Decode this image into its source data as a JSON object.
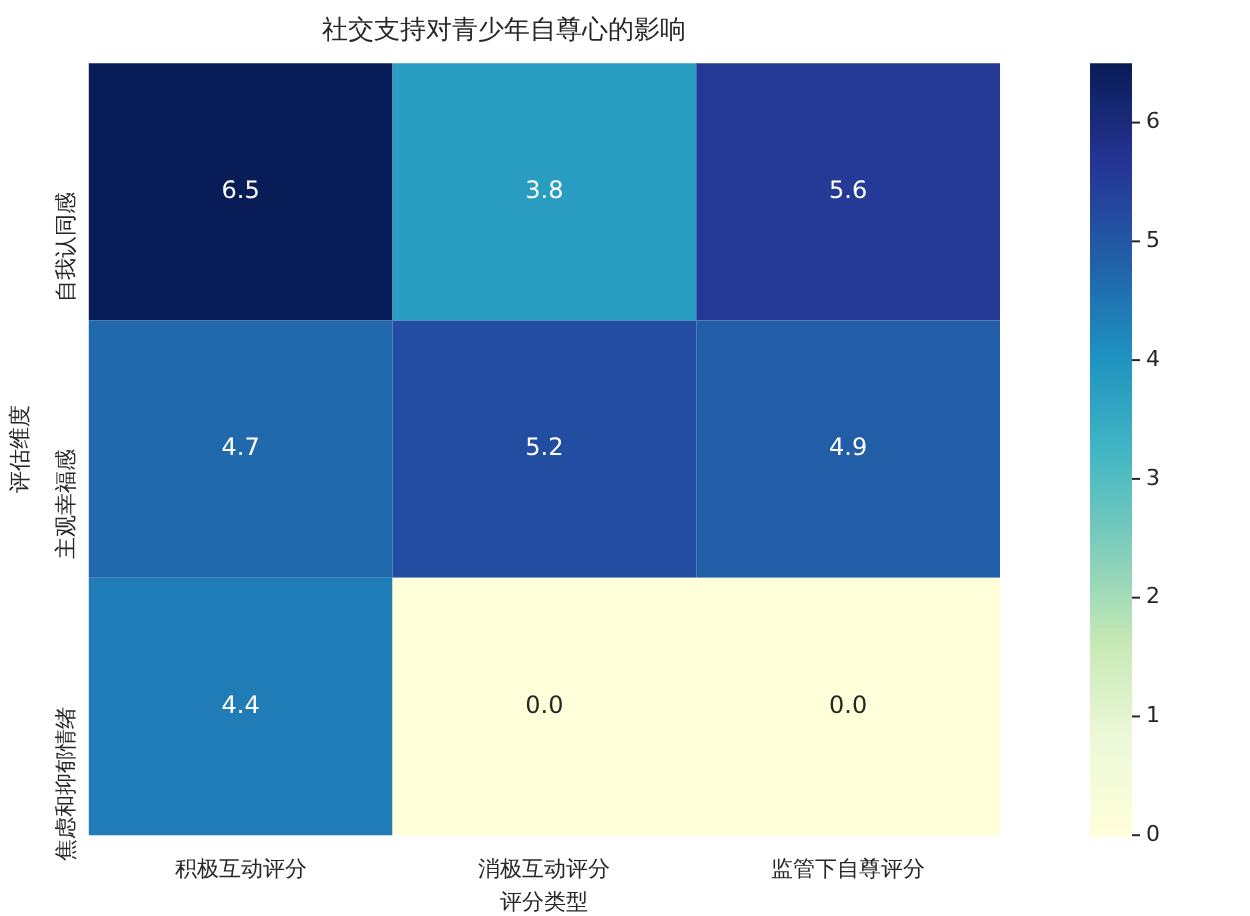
{
  "chart_data": {
    "type": "heatmap",
    "title": "社交支持对青少年自尊心的影响",
    "xlabel": "评分类型",
    "ylabel": "评估维度",
    "categories": [
      "积极互动评分",
      "消极互动评分",
      "监管下自尊评分"
    ],
    "y_categories": [
      "自我认同感",
      "主观幸福感",
      "焦虑和抑郁情绪"
    ],
    "cells": [
      [
        6.5,
        3.8,
        5.6
      ],
      [
        4.7,
        5.2,
        4.9
      ],
      [
        4.4,
        0.0,
        0.0
      ]
    ],
    "cell_labels": [
      [
        "6.5",
        "3.8",
        "5.6"
      ],
      [
        "4.7",
        "5.2",
        "4.9"
      ],
      [
        "4.4",
        "0.0",
        "0.0"
      ]
    ],
    "clim": [
      0,
      6.5
    ],
    "cticks": [
      0,
      1,
      2,
      3,
      4,
      5,
      6
    ]
  }
}
